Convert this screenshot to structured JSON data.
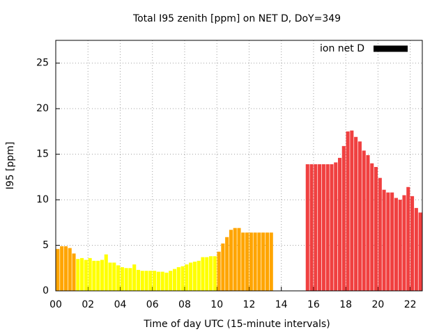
{
  "chart_data": {
    "type": "bar",
    "title": "Total I95 zenith [ppm] on NET D, DoY=349",
    "xlabel": "Time of day UTC (15-minute intervals)",
    "ylabel": "I95 [ppm]",
    "legend": {
      "label": "ion net D",
      "color": "#000000",
      "position": "top-right"
    },
    "grid": true,
    "xlim": [
      0,
      22.75
    ],
    "ylim": [
      0,
      27.5
    ],
    "xticks": [
      {
        "value": 0,
        "label": "00"
      },
      {
        "value": 2,
        "label": "02"
      },
      {
        "value": 4,
        "label": "04"
      },
      {
        "value": 6,
        "label": "06"
      },
      {
        "value": 8,
        "label": "08"
      },
      {
        "value": 10,
        "label": "10"
      },
      {
        "value": 12,
        "label": "12"
      },
      {
        "value": 14,
        "label": "14"
      },
      {
        "value": 16,
        "label": "16"
      },
      {
        "value": 18,
        "label": "18"
      },
      {
        "value": 20,
        "label": "20"
      },
      {
        "value": 22,
        "label": "22"
      }
    ],
    "yticks": [
      0,
      5,
      10,
      15,
      20,
      25
    ],
    "x": [
      0.125,
      0.375,
      0.625,
      0.875,
      1.125,
      1.375,
      1.625,
      1.875,
      2.125,
      2.375,
      2.625,
      2.875,
      3.125,
      3.375,
      3.625,
      3.875,
      4.125,
      4.375,
      4.625,
      4.875,
      5.125,
      5.375,
      5.625,
      5.875,
      6.125,
      6.375,
      6.625,
      6.875,
      7.125,
      7.375,
      7.625,
      7.875,
      8.125,
      8.375,
      8.625,
      8.875,
      9.125,
      9.375,
      9.625,
      9.875,
      10.125,
      10.375,
      10.625,
      10.875,
      11.125,
      11.375,
      11.625,
      11.875,
      12.125,
      12.375,
      12.625,
      12.875,
      13.125,
      13.375,
      13.625,
      13.875,
      14.125,
      14.375,
      14.625,
      14.875,
      15.125,
      15.375,
      15.625,
      15.875,
      16.125,
      16.375,
      16.625,
      16.875,
      17.125,
      17.375,
      17.625,
      17.875,
      18.125,
      18.375,
      18.625,
      18.875,
      19.125,
      19.375,
      19.625,
      19.875,
      20.125,
      20.375,
      20.625,
      20.875,
      21.125,
      21.375,
      21.625,
      21.875,
      22.125,
      22.375,
      22.625
    ],
    "values": [
      4.6,
      4.9,
      4.9,
      4.7,
      4.1,
      3.5,
      3.6,
      3.4,
      3.6,
      3.3,
      3.3,
      3.4,
      4.0,
      3.1,
      3.1,
      2.8,
      2.6,
      2.5,
      2.5,
      2.9,
      2.3,
      2.2,
      2.2,
      2.2,
      2.2,
      2.1,
      2.1,
      2.0,
      2.2,
      2.4,
      2.6,
      2.7,
      2.9,
      3.1,
      3.2,
      3.3,
      3.7,
      3.7,
      3.8,
      3.8,
      4.3,
      5.2,
      5.9,
      6.7,
      6.9,
      6.9,
      6.4,
      6.4,
      6.4,
      6.4,
      6.4,
      6.4,
      6.4,
      6.4,
      null,
      null,
      null,
      null,
      null,
      null,
      null,
      null,
      13.9,
      13.9,
      13.9,
      13.9,
      13.9,
      13.9,
      13.9,
      14.1,
      14.6,
      15.9,
      17.5,
      17.6,
      16.9,
      16.4,
      15.4,
      14.9,
      14.0,
      13.6,
      12.4,
      11.1,
      10.8,
      10.8,
      10.2,
      10.0,
      10.5,
      11.4,
      10.4,
      9.1,
      8.6
    ],
    "colors": [
      "#ffa500",
      "#ffa500",
      "#ffa500",
      "#ffa500",
      "#ffa500",
      "#ffff00",
      "#ffff00",
      "#ffff00",
      "#ffff00",
      "#ffff00",
      "#ffff00",
      "#ffff00",
      "#ffff00",
      "#ffff00",
      "#ffff00",
      "#ffff00",
      "#ffff00",
      "#ffff00",
      "#ffff00",
      "#ffff00",
      "#ffff00",
      "#ffff00",
      "#ffff00",
      "#ffff00",
      "#ffff00",
      "#ffff00",
      "#ffff00",
      "#ffff00",
      "#ffff00",
      "#ffff00",
      "#ffff00",
      "#ffff00",
      "#ffff00",
      "#ffff00",
      "#ffff00",
      "#ffff00",
      "#ffff00",
      "#ffff00",
      "#ffff00",
      "#ffff00",
      "#ffa500",
      "#ffa500",
      "#ffa500",
      "#ffa500",
      "#ffa500",
      "#ffa500",
      "#ffa500",
      "#ffa500",
      "#ffa500",
      "#ffa500",
      "#ffa500",
      "#ffa500",
      "#ffa500",
      "#ffa500",
      null,
      null,
      null,
      null,
      null,
      null,
      null,
      null,
      "#f04040",
      "#f04040",
      "#f04040",
      "#f04040",
      "#f04040",
      "#f04040",
      "#f04040",
      "#f04040",
      "#f04040",
      "#f04040",
      "#f04040",
      "#f04040",
      "#f04040",
      "#f04040",
      "#f04040",
      "#f04040",
      "#f04040",
      "#f04040",
      "#f04040",
      "#f04040",
      "#f04040",
      "#f04040",
      "#f04040",
      "#f04040",
      "#f04040",
      "#f04040",
      "#f04040",
      "#f04040",
      "#f04040"
    ]
  }
}
